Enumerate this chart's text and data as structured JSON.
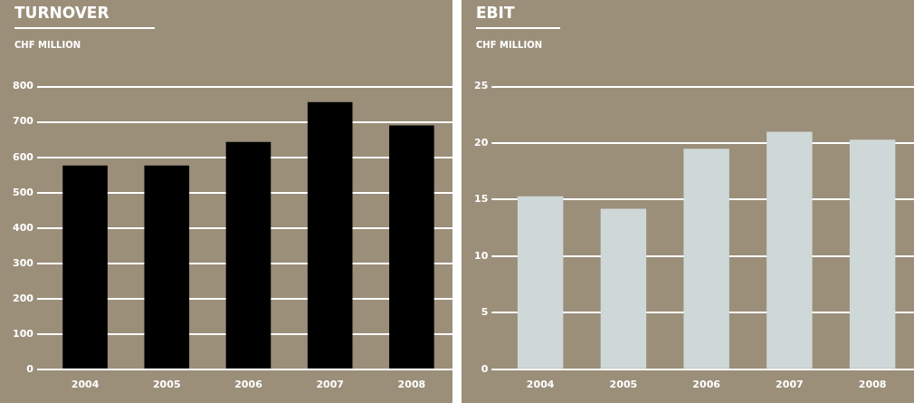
{
  "chart_data": [
    {
      "type": "bar",
      "title": "TURNOVER",
      "subtitle": "CHF MILLION",
      "categories": [
        "2004",
        "2005",
        "2006",
        "2007",
        "2008"
      ],
      "values": [
        577,
        577,
        643,
        756,
        690
      ],
      "color": "#000000",
      "ylim": [
        0,
        800
      ],
      "yticks": [
        0,
        100,
        200,
        300,
        400,
        500,
        600,
        700,
        800
      ],
      "grid": "y",
      "legend": false
    },
    {
      "type": "bar",
      "title": "EBIT",
      "subtitle": "CHF MILLION",
      "categories": [
        "2004",
        "2005",
        "2006",
        "2007",
        "2008"
      ],
      "values": [
        15.3,
        14.2,
        19.5,
        21.0,
        20.3
      ],
      "color": "#cfd8d8",
      "ylim": [
        0,
        25
      ],
      "yticks": [
        0,
        5,
        10,
        15,
        20,
        25
      ],
      "grid": "y",
      "legend": false
    }
  ]
}
